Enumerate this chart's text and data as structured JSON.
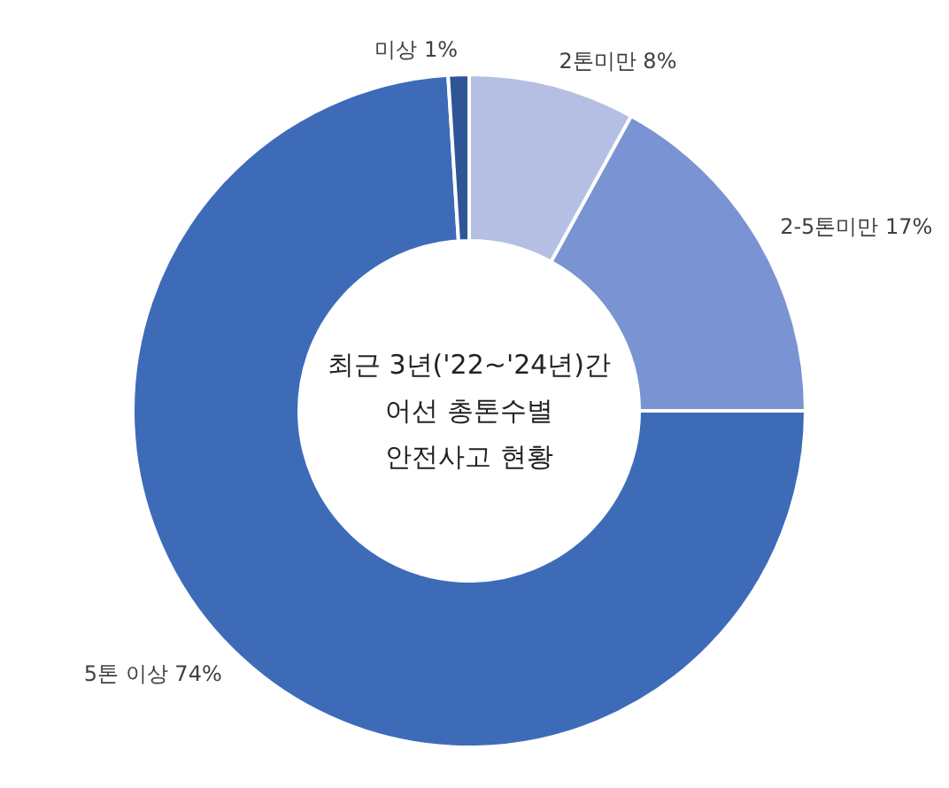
{
  "chart_data": {
    "type": "donut",
    "title": "최근 3년('22~'24년)간\n어선 총톤수별\n안전사고 현황",
    "categories": [
      "2톤미만",
      "2-5톤미만",
      "5톤 이상",
      "미상"
    ],
    "values": [
      8,
      17,
      74,
      1
    ],
    "value_labels": [
      "8%",
      "17%",
      "74%",
      "1%"
    ],
    "colors": [
      "#b4bfe3",
      "#7a93d2",
      "#3e6bb8",
      "#2f5597"
    ]
  }
}
